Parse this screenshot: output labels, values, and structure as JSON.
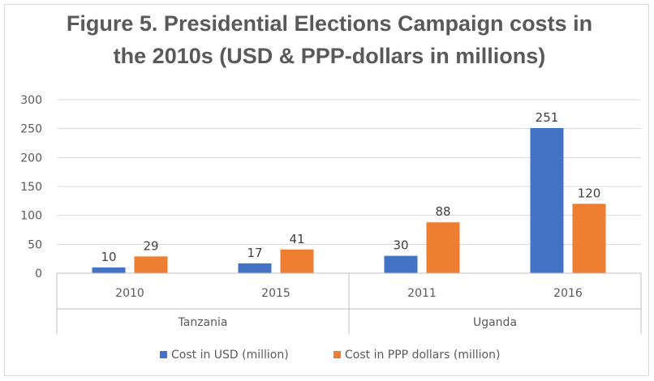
{
  "chart_data": {
    "type": "bar",
    "title_lines": [
      "Figure 5. Presidential Elections Campaign costs in",
      "the 2010s (USD & PPP-dollars in millions)"
    ],
    "categories": [
      "2010",
      "2015",
      "2011",
      "2016"
    ],
    "groups": [
      {
        "label": "Tanzania",
        "categories": [
          "2010",
          "2015"
        ]
      },
      {
        "label": "Uganda",
        "categories": [
          "2011",
          "2016"
        ]
      }
    ],
    "series": [
      {
        "name": "Cost in USD (million)",
        "color": "#4472C4",
        "values": [
          10,
          17,
          30,
          251
        ]
      },
      {
        "name": "Cost in PPP dollars (million)",
        "color": "#ED7D31",
        "values": [
          29,
          41,
          88,
          120
        ]
      }
    ],
    "yticks": [
      0,
      50,
      100,
      150,
      200,
      250,
      300
    ],
    "ylim": [
      0,
      300
    ],
    "grid": true,
    "legend": "bottom"
  }
}
